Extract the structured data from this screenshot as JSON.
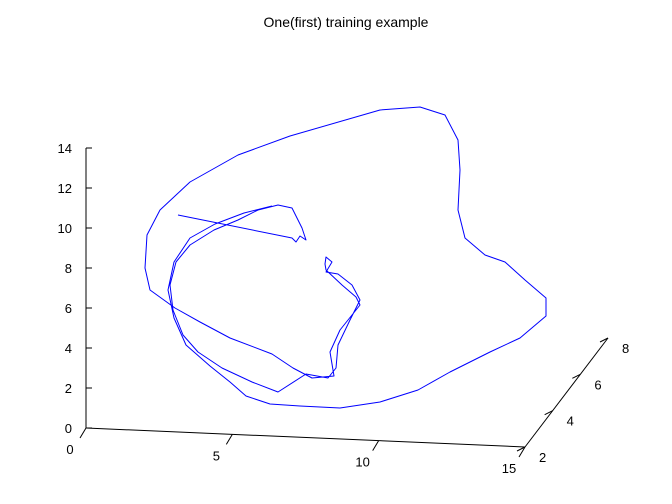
{
  "chart_data": {
    "type": "line",
    "title": "One(first) training example",
    "xlabel": "",
    "ylabel": "",
    "zlabel": "",
    "xlim": [
      0,
      15
    ],
    "ylim": [
      2,
      8
    ],
    "zlim": [
      0,
      14
    ],
    "x_ticks": [
      "0",
      "5",
      "10",
      "15"
    ],
    "y_ticks": [
      "2",
      "4",
      "6",
      "8"
    ],
    "z_ticks": [
      "0",
      "2",
      "4",
      "6",
      "8",
      "10",
      "12",
      "14"
    ],
    "grid": false,
    "series": [
      {
        "color": "#0000ff",
        "points_screen_proj": [
          [
            178,
            215
          ],
          [
            292,
            238
          ],
          [
            296,
            242
          ],
          [
            300,
            236
          ],
          [
            306,
            240
          ],
          [
            302,
            228
          ],
          [
            292,
            208
          ],
          [
            278,
            205
          ],
          [
            258,
            210
          ],
          [
            238,
            220
          ],
          [
            214,
            230
          ],
          [
            190,
            245
          ],
          [
            176,
            262
          ],
          [
            170,
            285
          ],
          [
            173,
            310
          ],
          [
            183,
            335
          ],
          [
            198,
            352
          ],
          [
            222,
            368
          ],
          [
            252,
            382
          ],
          [
            278,
            392
          ],
          [
            306,
            374
          ],
          [
            328,
            378
          ],
          [
            336,
            368
          ],
          [
            338,
            345
          ],
          [
            350,
            320
          ],
          [
            360,
            300
          ],
          [
            352,
            285
          ],
          [
            338,
            274
          ],
          [
            326,
            272
          ],
          [
            332,
            262
          ],
          [
            326,
            257
          ],
          [
            325,
            264
          ],
          [
            326,
            270
          ],
          [
            342,
            285
          ],
          [
            356,
            297
          ],
          [
            360,
            305
          ],
          [
            340,
            330
          ],
          [
            330,
            352
          ],
          [
            334,
            376
          ],
          [
            312,
            378
          ],
          [
            293,
            368
          ],
          [
            272,
            354
          ],
          [
            230,
            338
          ],
          [
            200,
            322
          ],
          [
            175,
            308
          ],
          [
            150,
            290
          ],
          [
            145,
            268
          ],
          [
            147,
            235
          ],
          [
            160,
            210
          ],
          [
            190,
            182
          ],
          [
            238,
            155
          ],
          [
            290,
            136
          ],
          [
            380,
            110
          ],
          [
            420,
            107
          ],
          [
            445,
            115
          ],
          [
            458,
            140
          ],
          [
            460,
            170
          ],
          [
            458,
            210
          ],
          [
            465,
            238
          ],
          [
            485,
            255
          ],
          [
            505,
            262
          ],
          [
            525,
            280
          ],
          [
            546,
            298
          ],
          [
            546,
            316
          ],
          [
            520,
            338
          ],
          [
            490,
            352
          ],
          [
            450,
            372
          ],
          [
            418,
            390
          ],
          [
            380,
            402
          ],
          [
            340,
            408
          ],
          [
            300,
            406
          ],
          [
            270,
            404
          ],
          [
            246,
            396
          ],
          [
            230,
            382
          ],
          [
            210,
            366
          ],
          [
            186,
            345
          ],
          [
            174,
            318
          ],
          [
            168,
            290
          ],
          [
            174,
            262
          ],
          [
            190,
            238
          ],
          [
            215,
            224
          ],
          [
            244,
            213
          ],
          [
            272,
            206
          ]
        ]
      }
    ]
  }
}
